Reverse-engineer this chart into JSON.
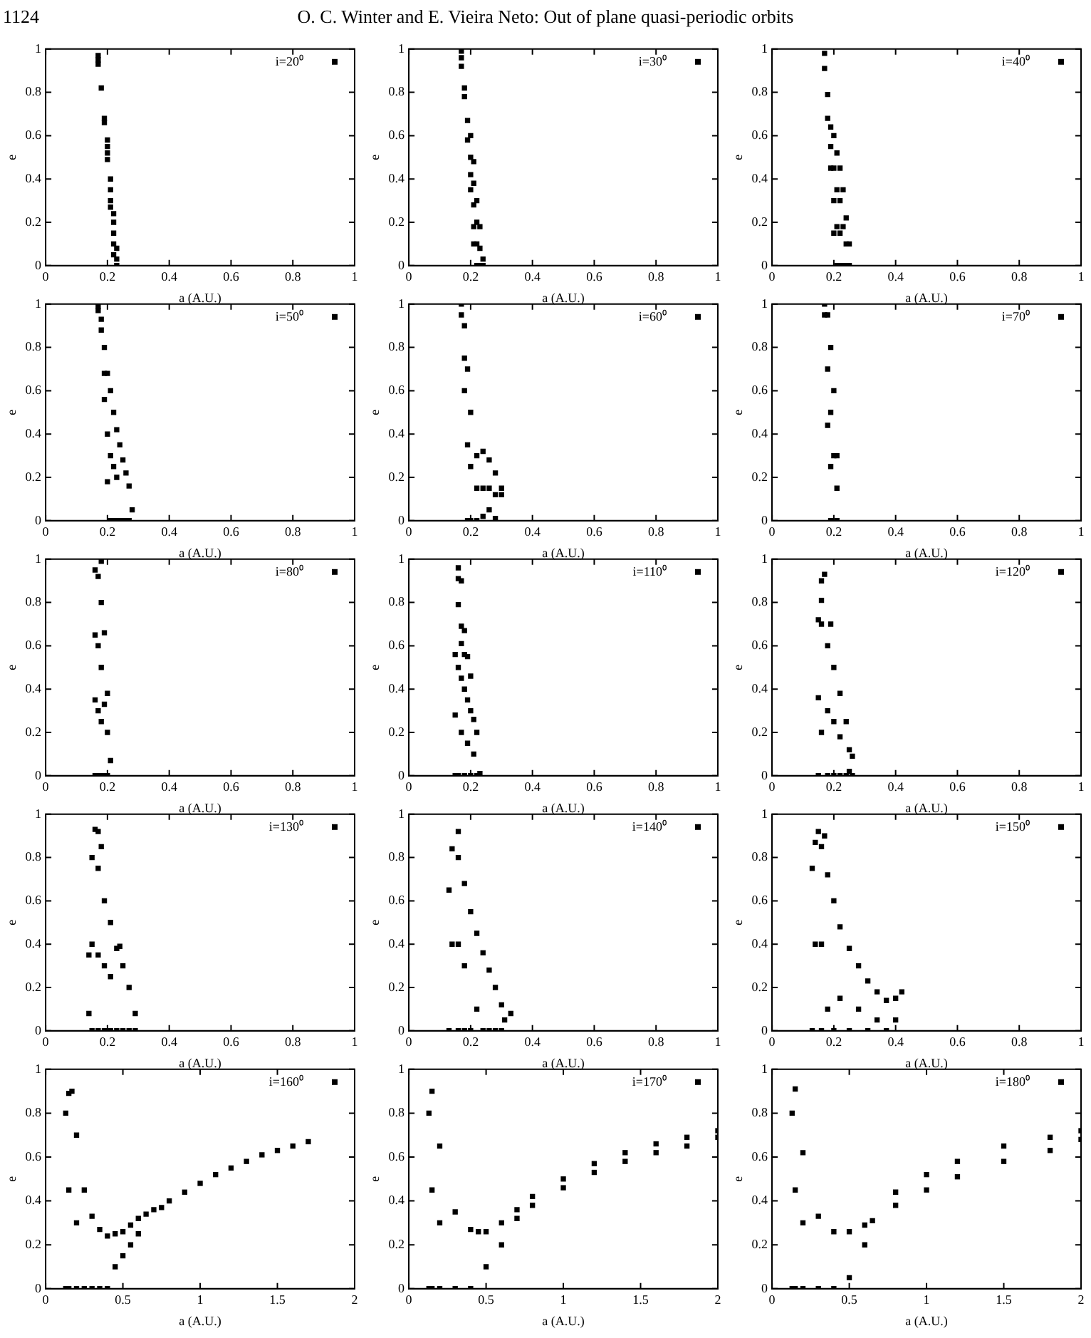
{
  "chart_data": [
    {
      "type": "scatter",
      "annotations": [
        "1124",
        "O. C. Winter and E. Vieira Neto: Out of plane quasi-periodic orbits"
      ],
      "xlabel": "a (A.U.)",
      "ylabel": "e",
      "xlim": [
        0,
        1
      ],
      "ylim": [
        0,
        1
      ],
      "xticks": [
        0,
        0.2,
        0.4,
        0.6,
        0.8,
        1
      ],
      "yticks": [
        0,
        0.2,
        0.4,
        0.6,
        0.8,
        1
      ],
      "legend": "top right",
      "marker": "square",
      "series": [
        {
          "name": "i=20⁰",
          "color": "#000000",
          "x": [
            0.17,
            0.17,
            0.17,
            0.18,
            0.19,
            0.19,
            0.2,
            0.2,
            0.2,
            0.2,
            0.21,
            0.21,
            0.21,
            0.21,
            0.22,
            0.22,
            0.22,
            0.22,
            0.22,
            0.23,
            0.23,
            0.23
          ],
          "values": [
            0.97,
            0.95,
            0.93,
            0.82,
            0.68,
            0.66,
            0.58,
            0.55,
            0.52,
            0.49,
            0.4,
            0.35,
            0.3,
            0.27,
            0.24,
            0.2,
            0.15,
            0.1,
            0.05,
            0.08,
            0.03,
            0
          ]
        }
      ]
    },
    {
      "type": "scatter",
      "xlabel": "a (A.U.)",
      "ylabel": "e",
      "xlim": [
        0,
        1
      ],
      "ylim": [
        0,
        1
      ],
      "xticks": [
        0,
        0.2,
        0.4,
        0.6,
        0.8,
        1
      ],
      "yticks": [
        0,
        0.2,
        0.4,
        0.6,
        0.8,
        1
      ],
      "legend": "top right",
      "marker": "square",
      "series": [
        {
          "name": "i=30⁰",
          "color": "#000000",
          "x": [
            0.17,
            0.17,
            0.17,
            0.18,
            0.18,
            0.19,
            0.19,
            0.2,
            0.2,
            0.2,
            0.2,
            0.21,
            0.21,
            0.21,
            0.21,
            0.21,
            0.22,
            0.22,
            0.22,
            0.22,
            0.23,
            0.23,
            0.23,
            0.24,
            0.24
          ],
          "values": [
            0.99,
            0.96,
            0.92,
            0.82,
            0.78,
            0.67,
            0.58,
            0.6,
            0.5,
            0.42,
            0.35,
            0.48,
            0.38,
            0.28,
            0.18,
            0.1,
            0.3,
            0.2,
            0.1,
            0,
            0.18,
            0.08,
            0,
            0.03,
            0
          ]
        }
      ]
    },
    {
      "type": "scatter",
      "xlabel": "a (A.U.)",
      "ylabel": "e",
      "xlim": [
        0,
        1
      ],
      "ylim": [
        0,
        1
      ],
      "xticks": [
        0,
        0.2,
        0.4,
        0.6,
        0.8,
        1
      ],
      "yticks": [
        0,
        0.2,
        0.4,
        0.6,
        0.8,
        1
      ],
      "legend": "top right",
      "marker": "square",
      "series": [
        {
          "name": "i=40⁰",
          "color": "#000000",
          "x": [
            0.17,
            0.17,
            0.18,
            0.18,
            0.19,
            0.19,
            0.19,
            0.2,
            0.2,
            0.2,
            0.2,
            0.21,
            0.21,
            0.21,
            0.21,
            0.22,
            0.22,
            0.22,
            0.22,
            0.23,
            0.23,
            0.23,
            0.24,
            0.24,
            0.24,
            0.25,
            0.25
          ],
          "values": [
            0.98,
            0.91,
            0.79,
            0.68,
            0.64,
            0.55,
            0.45,
            0.6,
            0.45,
            0.3,
            0.15,
            0.52,
            0.35,
            0.18,
            0,
            0.45,
            0.3,
            0.15,
            0,
            0.35,
            0.18,
            0,
            0.22,
            0.1,
            0,
            0.1,
            0
          ]
        }
      ]
    },
    {
      "type": "scatter",
      "xlabel": "a (A.U.)",
      "ylabel": "e",
      "xlim": [
        0,
        1
      ],
      "ylim": [
        0,
        1
      ],
      "xticks": [
        0,
        0.2,
        0.4,
        0.6,
        0.8,
        1
      ],
      "yticks": [
        0,
        0.2,
        0.4,
        0.6,
        0.8,
        1
      ],
      "legend": "top right",
      "marker": "square",
      "series": [
        {
          "name": "i=50⁰",
          "color": "#000000",
          "x": [
            0.17,
            0.17,
            0.18,
            0.18,
            0.19,
            0.19,
            0.19,
            0.2,
            0.2,
            0.2,
            0.21,
            0.21,
            0.21,
            0.22,
            0.22,
            0.22,
            0.23,
            0.23,
            0.23,
            0.24,
            0.24,
            0.25,
            0.25,
            0.26,
            0.26,
            0.27,
            0.27,
            0.28
          ],
          "values": [
            0.99,
            0.97,
            0.93,
            0.88,
            0.8,
            0.68,
            0.56,
            0.68,
            0.4,
            0.18,
            0.6,
            0.3,
            0,
            0.5,
            0.25,
            0,
            0.42,
            0.2,
            0,
            0.35,
            0,
            0.28,
            0,
            0.22,
            0,
            0.16,
            0,
            0.05
          ]
        }
      ]
    },
    {
      "type": "scatter",
      "xlabel": "a (A.U.)",
      "ylabel": "e",
      "xlim": [
        0,
        1
      ],
      "ylim": [
        0,
        1
      ],
      "xticks": [
        0,
        0.2,
        0.4,
        0.6,
        0.8,
        1
      ],
      "yticks": [
        0,
        0.2,
        0.4,
        0.6,
        0.8,
        1
      ],
      "legend": "top right",
      "marker": "square",
      "series": [
        {
          "name": "i=60⁰",
          "color": "#000000",
          "x": [
            0.17,
            0.17,
            0.18,
            0.18,
            0.18,
            0.19,
            0.19,
            0.19,
            0.2,
            0.2,
            0.2,
            0.22,
            0.22,
            0.22,
            0.24,
            0.24,
            0.24,
            0.26,
            0.26,
            0.26,
            0.28,
            0.28,
            0.28,
            0.3,
            0.3
          ],
          "values": [
            1,
            0.95,
            0.9,
            0.75,
            0.6,
            0.7,
            0.35,
            0,
            0.5,
            0.25,
            0,
            0.3,
            0.15,
            0,
            0.32,
            0.15,
            0.02,
            0.28,
            0.15,
            0.05,
            0.22,
            0.12,
            0.01,
            0.15,
            0.12
          ]
        }
      ]
    },
    {
      "type": "scatter",
      "xlabel": "a (A.U.)",
      "ylabel": "e",
      "xlim": [
        0,
        1
      ],
      "ylim": [
        0,
        1
      ],
      "xticks": [
        0,
        0.2,
        0.4,
        0.6,
        0.8,
        1
      ],
      "yticks": [
        0,
        0.2,
        0.4,
        0.6,
        0.8,
        1
      ],
      "legend": "top right",
      "marker": "square",
      "series": [
        {
          "name": "i=70⁰",
          "color": "#000000",
          "x": [
            0.17,
            0.17,
            0.18,
            0.18,
            0.18,
            0.19,
            0.19,
            0.19,
            0.19,
            0.2,
            0.2,
            0.21,
            0.21,
            0.21
          ],
          "values": [
            1,
            0.95,
            0.95,
            0.7,
            0.44,
            0.8,
            0.5,
            0.25,
            0,
            0.6,
            0.3,
            0.3,
            0.15,
            0
          ]
        }
      ]
    },
    {
      "type": "scatter",
      "xlabel": "a (A.U.)",
      "ylabel": "e",
      "xlim": [
        0,
        1
      ],
      "ylim": [
        0,
        1
      ],
      "xticks": [
        0,
        0.2,
        0.4,
        0.6,
        0.8,
        1
      ],
      "yticks": [
        0,
        0.2,
        0.4,
        0.6,
        0.8,
        1
      ],
      "legend": "top right",
      "marker": "square",
      "series": [
        {
          "name": "i=80⁰",
          "color": "#000000",
          "x": [
            0.16,
            0.16,
            0.16,
            0.16,
            0.17,
            0.17,
            0.17,
            0.17,
            0.18,
            0.18,
            0.18,
            0.18,
            0.19,
            0.19,
            0.19,
            0.2,
            0.2,
            0.2,
            0.21,
            0.18
          ],
          "values": [
            0.95,
            0.65,
            0.35,
            0,
            0.92,
            0.6,
            0.3,
            0,
            0.8,
            0.5,
            0.25,
            0,
            0.66,
            0.33,
            0,
            0.38,
            0.2,
            0,
            0.07,
            0.99
          ]
        }
      ]
    },
    {
      "type": "scatter",
      "xlabel": "a (A.U.)",
      "ylabel": "e",
      "xlim": [
        0,
        1
      ],
      "ylim": [
        0,
        1
      ],
      "xticks": [
        0,
        0.2,
        0.4,
        0.6,
        0.8,
        1
      ],
      "yticks": [
        0,
        0.2,
        0.4,
        0.6,
        0.8,
        1
      ],
      "legend": "top right",
      "marker": "square",
      "series": [
        {
          "name": "i=110⁰",
          "color": "#000000",
          "x": [
            0.15,
            0.15,
            0.15,
            0.16,
            0.16,
            0.17,
            0.17,
            0.18,
            0.18,
            0.19,
            0.19,
            0.2,
            0.2,
            0.21,
            0.21,
            0.22,
            0.22,
            0.23,
            0.16,
            0.16,
            0.17,
            0.16,
            0.17,
            0.18,
            0.17,
            0.18,
            0.19,
            0.2
          ],
          "values": [
            0.56,
            0.28,
            0,
            0.5,
            0,
            0.45,
            0.2,
            0.4,
            0,
            0.35,
            0.15,
            0.3,
            0,
            0.26,
            0.1,
            0.2,
            0,
            0.01,
            0.96,
            0.91,
            0.9,
            0.79,
            0.69,
            0.67,
            0.61,
            0.56,
            0.55,
            0.46
          ]
        }
      ]
    },
    {
      "type": "scatter",
      "xlabel": "a (A.U.)",
      "ylabel": "e",
      "xlim": [
        0,
        1
      ],
      "ylim": [
        0,
        1
      ],
      "xticks": [
        0,
        0.2,
        0.4,
        0.6,
        0.8,
        1
      ],
      "yticks": [
        0,
        0.2,
        0.4,
        0.6,
        0.8,
        1
      ],
      "legend": "top right",
      "marker": "square",
      "series": [
        {
          "name": "i=120⁰",
          "color": "#000000",
          "x": [
            0.15,
            0.15,
            0.15,
            0.16,
            0.16,
            0.18,
            0.18,
            0.18,
            0.2,
            0.2,
            0.2,
            0.22,
            0.22,
            0.22,
            0.24,
            0.24,
            0.25,
            0.25,
            0.26,
            0.16,
            0.17,
            0.16,
            0.19,
            0.26
          ],
          "values": [
            0.72,
            0.36,
            0,
            0.7,
            0.2,
            0.6,
            0.3,
            0,
            0.5,
            0.25,
            0,
            0.38,
            0.18,
            0,
            0.25,
            0,
            0.12,
            0.02,
            0,
            0.9,
            0.93,
            0.81,
            0.7,
            0.09
          ]
        }
      ]
    },
    {
      "type": "scatter",
      "xlabel": "a (A.U.)",
      "ylabel": "e",
      "xlim": [
        0,
        1
      ],
      "ylim": [
        0,
        1
      ],
      "xticks": [
        0,
        0.2,
        0.4,
        0.6,
        0.8,
        1
      ],
      "yticks": [
        0,
        0.2,
        0.4,
        0.6,
        0.8,
        1
      ],
      "legend": "top right",
      "marker": "square",
      "series": [
        {
          "name": "i=130⁰",
          "color": "#000000",
          "x": [
            0.14,
            0.14,
            0.15,
            0.15,
            0.15,
            0.17,
            0.17,
            0.17,
            0.19,
            0.19,
            0.19,
            0.21,
            0.21,
            0.21,
            0.23,
            0.23,
            0.25,
            0.25,
            0.27,
            0.27,
            0.29,
            0.29,
            0.16,
            0.17,
            0.18,
            0.24
          ],
          "values": [
            0.35,
            0.08,
            0.8,
            0.4,
            0,
            0.75,
            0.35,
            0,
            0.6,
            0.3,
            0,
            0.5,
            0.25,
            0,
            0.38,
            0,
            0.3,
            0,
            0.2,
            0,
            0.08,
            0,
            0.93,
            0.92,
            0.85,
            0.39
          ]
        }
      ]
    },
    {
      "type": "scatter",
      "xlabel": "a (A.U.)",
      "ylabel": "e",
      "xlim": [
        0,
        1
      ],
      "ylim": [
        0,
        1
      ],
      "xticks": [
        0,
        0.2,
        0.4,
        0.6,
        0.8,
        1
      ],
      "yticks": [
        0,
        0.2,
        0.4,
        0.6,
        0.8,
        1
      ],
      "legend": "top right",
      "marker": "square",
      "series": [
        {
          "name": "i=140⁰",
          "color": "#000000",
          "x": [
            0.13,
            0.13,
            0.14,
            0.14,
            0.16,
            0.16,
            0.16,
            0.18,
            0.18,
            0.18,
            0.2,
            0.2,
            0.22,
            0.22,
            0.24,
            0.24,
            0.26,
            0.26,
            0.28,
            0.28,
            0.3,
            0.3,
            0.31,
            0.33,
            0.16
          ],
          "values": [
            0.65,
            0,
            0.84,
            0.4,
            0.8,
            0.4,
            0,
            0.68,
            0.3,
            0,
            0.55,
            0,
            0.45,
            0.1,
            0.36,
            0,
            0.28,
            0,
            0.2,
            0,
            0.12,
            0,
            0.05,
            0.08,
            0.92
          ]
        }
      ]
    },
    {
      "type": "scatter",
      "xlabel": "a (A.U.)",
      "ylabel": "e",
      "xlim": [
        0,
        1
      ],
      "ylim": [
        0,
        1
      ],
      "xticks": [
        0,
        0.2,
        0.4,
        0.6,
        0.8,
        1
      ],
      "yticks": [
        0,
        0.2,
        0.4,
        0.6,
        0.8,
        1
      ],
      "legend": "top right",
      "marker": "square",
      "series": [
        {
          "name": "i=150⁰",
          "color": "#000000",
          "x": [
            0.13,
            0.13,
            0.14,
            0.14,
            0.16,
            0.16,
            0.16,
            0.18,
            0.18,
            0.2,
            0.2,
            0.22,
            0.22,
            0.25,
            0.25,
            0.28,
            0.28,
            0.31,
            0.31,
            0.34,
            0.34,
            0.37,
            0.37,
            0.4,
            0.4,
            0.42,
            0.15,
            0.17
          ],
          "values": [
            0.75,
            0,
            0.87,
            0.4,
            0.85,
            0.4,
            0,
            0.72,
            0.1,
            0.6,
            0,
            0.48,
            0.15,
            0.38,
            0,
            0.3,
            0.1,
            0.23,
            0,
            0.18,
            0.05,
            0.14,
            0,
            0.15,
            0.05,
            0.18,
            0.92,
            0.9
          ]
        }
      ]
    },
    {
      "type": "scatter",
      "xlabel": "a (A.U.)",
      "ylabel": "e",
      "xlim": [
        0,
        2
      ],
      "ylim": [
        0,
        1
      ],
      "xticks": [
        0,
        0.5,
        1,
        1.5,
        2
      ],
      "yticks": [
        0,
        0.2,
        0.4,
        0.6,
        0.8,
        1
      ],
      "legend": "top right",
      "marker": "square",
      "series": [
        {
          "name": "i=160⁰",
          "color": "#000000",
          "x": [
            0.13,
            0.13,
            0.15,
            0.15,
            0.15,
            0.17,
            0.2,
            0.2,
            0.2,
            0.25,
            0.25,
            0.3,
            0.3,
            0.35,
            0.35,
            0.4,
            0.4,
            0.45,
            0.45,
            0.5,
            0.5,
            0.55,
            0.55,
            0.6,
            0.6,
            0.65,
            0.7,
            0.75,
            0.8,
            0.9,
            1,
            1.1,
            1.2,
            1.3,
            1.4,
            1.5,
            1.6,
            1.7
          ],
          "values": [
            0.8,
            0,
            0.89,
            0.45,
            0,
            0.9,
            0.7,
            0.3,
            0,
            0.45,
            0,
            0.33,
            0,
            0.27,
            0,
            0.24,
            0,
            0.25,
            0.1,
            0.26,
            0.15,
            0.29,
            0.2,
            0.32,
            0.25,
            0.34,
            0.36,
            0.37,
            0.4,
            0.44,
            0.48,
            0.52,
            0.55,
            0.58,
            0.61,
            0.63,
            0.65,
            0.67
          ]
        }
      ]
    },
    {
      "type": "scatter",
      "xlabel": "a (A.U.)",
      "ylabel": "e",
      "xlim": [
        0,
        2
      ],
      "ylim": [
        0,
        1
      ],
      "xticks": [
        0,
        0.5,
        1,
        1.5,
        2
      ],
      "yticks": [
        0,
        0.2,
        0.4,
        0.6,
        0.8,
        1
      ],
      "legend": "top right",
      "marker": "square",
      "series": [
        {
          "name": "i=170⁰",
          "color": "#000000",
          "x": [
            0.13,
            0.13,
            0.15,
            0.15,
            0.15,
            0.2,
            0.2,
            0.2,
            0.3,
            0.3,
            0.4,
            0.4,
            0.45,
            0.5,
            0.5,
            0.6,
            0.6,
            0.7,
            0.7,
            0.8,
            0.8,
            1,
            1,
            1.2,
            1.2,
            1.4,
            1.4,
            1.6,
            1.6,
            1.8,
            1.8,
            2,
            2
          ],
          "values": [
            0.8,
            0,
            0.9,
            0.45,
            0,
            0.65,
            0.3,
            0,
            0.35,
            0,
            0.27,
            0,
            0.26,
            0.26,
            0.1,
            0.3,
            0.2,
            0.36,
            0.32,
            0.42,
            0.38,
            0.5,
            0.46,
            0.57,
            0.53,
            0.62,
            0.58,
            0.66,
            0.62,
            0.69,
            0.65,
            0.72,
            0.69
          ]
        }
      ]
    },
    {
      "type": "scatter",
      "xlabel": "a (A.U.)",
      "ylabel": "e",
      "xlim": [
        0,
        2
      ],
      "ylim": [
        0,
        1
      ],
      "xticks": [
        0,
        0.5,
        1,
        1.5,
        2
      ],
      "yticks": [
        0,
        0.2,
        0.4,
        0.6,
        0.8,
        1
      ],
      "legend": "top right",
      "marker": "square",
      "series": [
        {
          "name": "i=180⁰",
          "color": "#000000",
          "x": [
            0.13,
            0.13,
            0.15,
            0.15,
            0.15,
            0.2,
            0.2,
            0.2,
            0.3,
            0.3,
            0.4,
            0.4,
            0.5,
            0.5,
            0.6,
            0.6,
            0.65,
            0.8,
            0.8,
            1,
            1,
            1.2,
            1.2,
            1.5,
            1.5,
            1.8,
            1.8,
            2,
            2
          ],
          "values": [
            0.8,
            0,
            0.91,
            0.45,
            0,
            0.62,
            0.3,
            0,
            0.33,
            0,
            0.26,
            0,
            0.26,
            0.05,
            0.29,
            0.2,
            0.31,
            0.44,
            0.38,
            0.52,
            0.45,
            0.58,
            0.51,
            0.65,
            0.58,
            0.69,
            0.63,
            0.72,
            0.68
          ]
        }
      ]
    }
  ]
}
